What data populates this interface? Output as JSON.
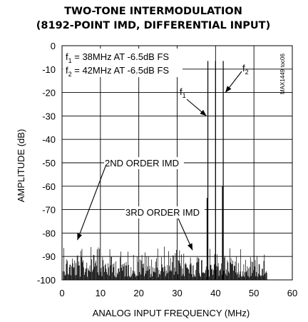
{
  "chart_data": {
    "type": "line",
    "title_line1": "TWO-TONE INTERMODULATION",
    "title_line2": "(8192-POINT IMD, DIFFERENTIAL INPUT)",
    "xlabel": "ANALOG INPUT FREQUENCY (MHz)",
    "ylabel": "AMPLITUDE (dB)",
    "xlim": [
      0,
      60
    ],
    "ylim": [
      -100,
      0
    ],
    "xticks": [
      "0",
      "10",
      "20",
      "30",
      "40",
      "50",
      "60"
    ],
    "yticks": [
      "0",
      "-10",
      "-20",
      "-30",
      "-40",
      "-50",
      "-60",
      "-70",
      "-80",
      "-90",
      "-100"
    ],
    "grid": true,
    "figure_code": "MAX1449 toc06",
    "legend_notes": [
      {
        "pre": "f",
        "sub": "1",
        "post": " = 38MHz AT -6.5dB FS"
      },
      {
        "pre": "f",
        "sub": "2",
        "post": " = 42MHz AT -6.5dB FS"
      }
    ],
    "annotations": [
      {
        "text": "2ND ORDER IMD",
        "target_x": 4,
        "target_y": -83
      },
      {
        "text": "3RD ORDER IMD",
        "target_x": 34,
        "target_y": -87
      },
      {
        "pre": "f",
        "sub": "1",
        "target_x": 38,
        "target_y": -6.5
      },
      {
        "pre": "f",
        "sub": "2",
        "target_x": 42,
        "target_y": -6.5
      }
    ],
    "tones": [
      {
        "x": 38,
        "y": -6.5
      },
      {
        "x": 42,
        "y": -6.5
      },
      {
        "x": 40,
        "y": -6.5
      },
      {
        "x": 37.8,
        "y": -65
      },
      {
        "x": 41.8,
        "y": -60
      }
    ],
    "noise_floor": {
      "x_start": 0.3,
      "x_end": 53.5,
      "top": -85,
      "bottom": -100
    }
  }
}
